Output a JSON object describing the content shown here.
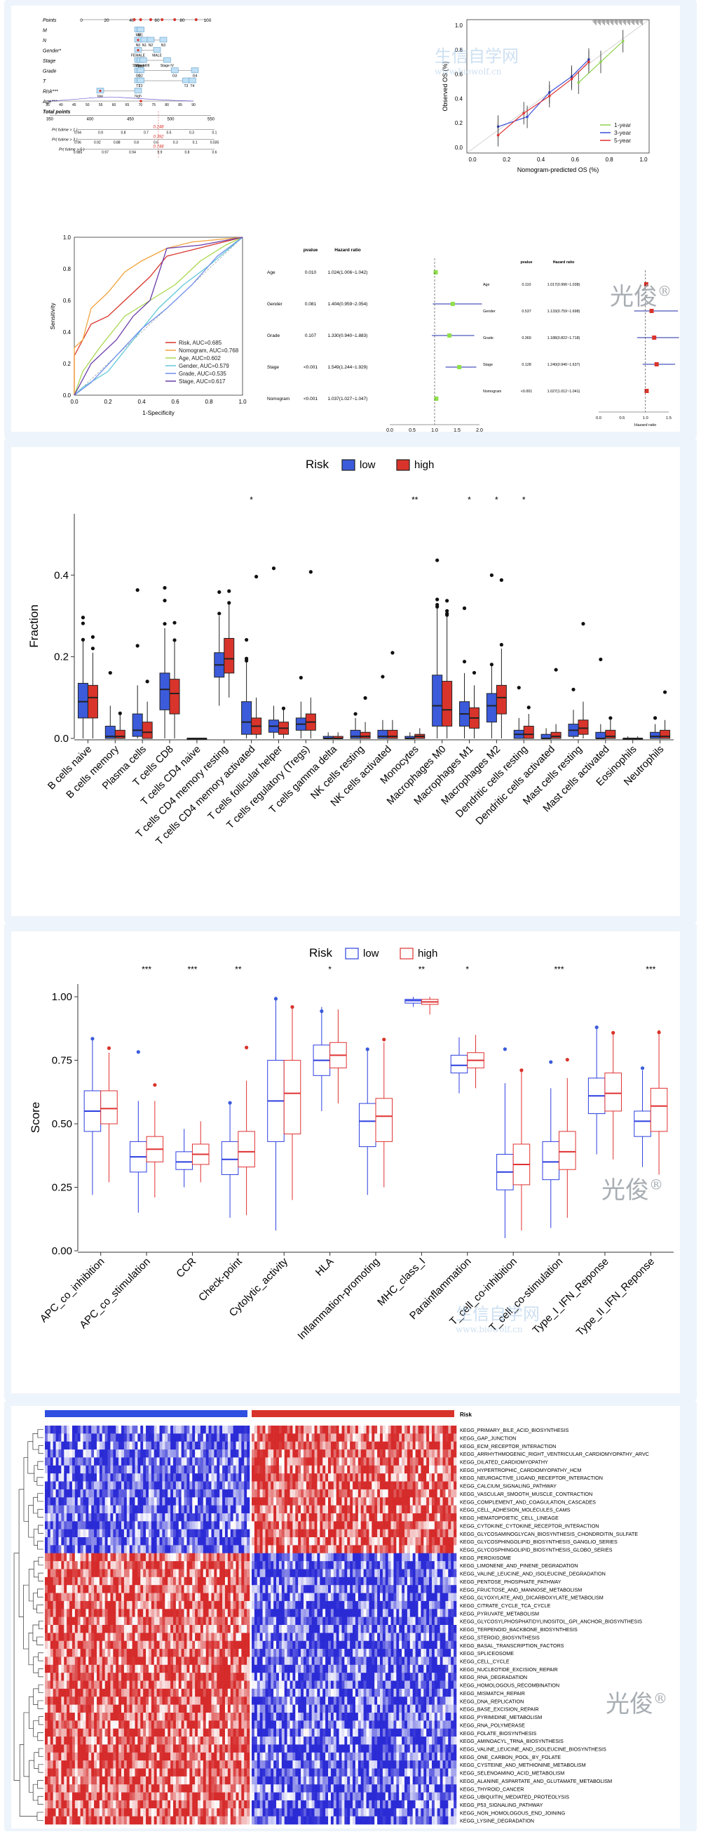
{
  "watermark": {
    "brand": "光俊",
    "reg": "®",
    "site": "生信自学网",
    "url": "www.biowolf.cn"
  },
  "colors": {
    "low": "#3b5bdb",
    "high": "#d9342b",
    "low_line": "#2c3fe0",
    "high_line": "#e03131"
  },
  "nomogram": {
    "rows": [
      "Points",
      "M",
      "N",
      "Gender*",
      "Stage",
      "Grade",
      "T",
      "Risk***",
      "Age***",
      "Total points"
    ],
    "points_ticks": [
      "0",
      "20",
      "40",
      "60",
      "80",
      "100"
    ],
    "total_ticks": [
      "350",
      "400",
      "450",
      "500",
      "550"
    ],
    "m_labels": [
      "M0",
      "M1"
    ],
    "n_labels": [
      "N0",
      "N1",
      "N2",
      "N3"
    ],
    "gender_labels": [
      "FEMALE",
      "MALE"
    ],
    "stage_labels": [
      "Stage I",
      "Stage II",
      "Stage III",
      "Stage IV"
    ],
    "grade_labels": [
      "G1",
      "G2",
      "G3",
      "G4"
    ],
    "t_labels": [
      "T1",
      "T2",
      "T3",
      "T4"
    ],
    "risk_labels": [
      "low",
      "high"
    ],
    "age_ticks": [
      "35",
      "40",
      "45",
      "50",
      "55",
      "60",
      "65",
      "70",
      "75",
      "80",
      "85",
      "90"
    ],
    "prob_rows": [
      {
        "label": "Pr( futime > 1 )",
        "ticks": [
          "0.94",
          "0.9",
          "0.8",
          "0.7",
          "0.5",
          "0.3",
          "0.1"
        ],
        "value": "0.248"
      },
      {
        "label": "Pr( futime > 3 )",
        "ticks": [
          "0.96",
          "0.92",
          "0.88",
          "0.8",
          "0.6",
          "0.3",
          "0.1",
          "0.035"
        ],
        "value": "0.392"
      },
      {
        "label": "Pr( futime > 5 )",
        "ticks": [
          "0.985",
          "0.97",
          "0.94",
          "0.9",
          "0.8",
          "0.6"
        ],
        "value": "0.748"
      }
    ]
  },
  "calibration": {
    "xlabel": "Nomogram-predicted OS (%)",
    "ylabel": "Observed OS (%)",
    "ticks": [
      "0.0",
      "0.2",
      "0.4",
      "0.6",
      "0.8",
      "1.0"
    ],
    "legend": [
      "1-year",
      "3-year",
      "5-year"
    ],
    "colors": [
      "#8fd14f",
      "#3b4fd8",
      "#e03131"
    ]
  },
  "roc": {
    "xlabel": "1-Specificity",
    "ylabel": "Sensitivity",
    "ticks": [
      "0.0",
      "0.2",
      "0.4",
      "0.6",
      "0.8",
      "1.0"
    ],
    "legend": [
      "Risk, AUC=0.685",
      "Nomogram, AUC=0.768",
      "Age, AUC=0.602",
      "Gender, AUC=0.579",
      "Grade, AUC=0.535",
      "Stage, AUC=0.617"
    ],
    "colors": [
      "#d9342b",
      "#f2a33a",
      "#a8d84e",
      "#62c8d9",
      "#6f8fe8",
      "#6a3ca8"
    ]
  },
  "forest_uni": {
    "header_p": "pvalue",
    "header_hr": "Hazard ratio",
    "rows": [
      {
        "name": "Age",
        "p": "0.010",
        "hr": "1.024(1.006~1.042)",
        "est": 1.024,
        "lo": 1.006,
        "hi": 1.042
      },
      {
        "name": "Gender",
        "p": "0.081",
        "hr": "1.404(0.959~2.054)",
        "est": 1.404,
        "lo": 0.959,
        "hi": 2.054
      },
      {
        "name": "Grade",
        "p": "0.107",
        "hr": "1.330(0.940~1.883)",
        "est": 1.33,
        "lo": 0.94,
        "hi": 1.883
      },
      {
        "name": "Stage",
        "p": "<0.001",
        "hr": "1.549(1.244~1.929)",
        "est": 1.549,
        "lo": 1.244,
        "hi": 1.929
      },
      {
        "name": "Nomogram",
        "p": "<0.001",
        "hr": "1.037(1.027~1.047)",
        "est": 1.037,
        "lo": 1.027,
        "hi": 1.047
      }
    ],
    "xlabel": "Hazard ratio",
    "ticks": [
      "0.0",
      "0.5",
      "1.0",
      "1.5",
      "2.0"
    ]
  },
  "forest_multi": {
    "header_p": "pvalue",
    "header_hr": "Hazard ratio",
    "rows": [
      {
        "name": "Age",
        "p": "0.110",
        "hr": "1.017(0.996~1.038)",
        "est": 1.017,
        "lo": 0.996,
        "hi": 1.038
      },
      {
        "name": "Gender",
        "p": "0.537",
        "hr": "1.133(0.759~1.698)",
        "est": 1.133,
        "lo": 0.759,
        "hi": 1.698
      },
      {
        "name": "Grade",
        "p": "0.369",
        "hr": "1.188(0.822~1.718)",
        "est": 1.188,
        "lo": 0.822,
        "hi": 1.718
      },
      {
        "name": "Stage",
        "p": "0.128",
        "hr": "1.240(0.940~1.637)",
        "est": 1.24,
        "lo": 0.94,
        "hi": 1.637
      },
      {
        "name": "Nomogram",
        "p": "<0.001",
        "hr": "1.027(1.012~1.041)",
        "est": 1.027,
        "lo": 1.012,
        "hi": 1.041
      }
    ],
    "xlabel": "Hazard ratio",
    "ticks": [
      "0.0",
      "0.5",
      "1.0",
      "1.5"
    ]
  },
  "chart_data": [
    {
      "type": "box",
      "legend_title": "Risk",
      "series_names": [
        "low",
        "high"
      ],
      "ylabel": "Fraction",
      "ylim": [
        0,
        0.55
      ],
      "yticks": [
        "0.0",
        "0.2",
        "0.4"
      ],
      "categories": [
        "B cells naive",
        "B cells memory",
        "Plasma cells",
        "T cells CD8",
        "T cells CD4 naive",
        "T cells CD4 memory resting",
        "T cells CD4 memory activated",
        "T cells follicular helper",
        "T cells regulatory (Tregs)",
        "T cells gamma delta",
        "NK cells resting",
        "NK cells activated",
        "Monocytes",
        "Macrophages M0",
        "Macrophages M1",
        "Macrophages M2",
        "Dendritic cells resting",
        "Dendritic cells activated",
        "Mast cells resting",
        "Mast cells activated",
        "Eosinophils",
        "Neutrophils"
      ],
      "significance": [
        "",
        "",
        "",
        "",
        "",
        "",
        "*",
        "",
        "",
        "",
        "",
        "",
        "**",
        "",
        "*",
        "*",
        "*",
        "",
        "",
        "",
        "",
        ""
      ],
      "low": [
        {
          "min": 0,
          "q1": 0.05,
          "med": 0.09,
          "q3": 0.135,
          "max": 0.24
        },
        {
          "min": 0,
          "q1": 0,
          "med": 0.005,
          "q3": 0.03,
          "max": 0.08
        },
        {
          "min": 0,
          "q1": 0.005,
          "med": 0.02,
          "q3": 0.06,
          "max": 0.13
        },
        {
          "min": 0,
          "q1": 0.07,
          "med": 0.12,
          "q3": 0.16,
          "max": 0.27
        },
        {
          "min": 0,
          "q1": 0,
          "med": 0,
          "q3": 0,
          "max": 0
        },
        {
          "min": 0.08,
          "q1": 0.15,
          "med": 0.18,
          "q3": 0.21,
          "max": 0.3
        },
        {
          "min": 0,
          "q1": 0.01,
          "med": 0.04,
          "q3": 0.09,
          "max": 0.19
        },
        {
          "min": 0,
          "q1": 0.015,
          "med": 0.03,
          "q3": 0.045,
          "max": 0.08
        },
        {
          "min": 0,
          "q1": 0.02,
          "med": 0.035,
          "q3": 0.05,
          "max": 0.09
        },
        {
          "min": 0,
          "q1": 0,
          "med": 0,
          "q3": 0.005,
          "max": 0.015
        },
        {
          "min": 0,
          "q1": 0,
          "med": 0.005,
          "q3": 0.02,
          "max": 0.05
        },
        {
          "min": 0,
          "q1": 0,
          "med": 0.005,
          "q3": 0.02,
          "max": 0.045
        },
        {
          "min": 0,
          "q1": 0,
          "med": 0,
          "q3": 0.005,
          "max": 0.015
        },
        {
          "min": 0,
          "q1": 0.03,
          "med": 0.08,
          "q3": 0.155,
          "max": 0.32
        },
        {
          "min": 0,
          "q1": 0.03,
          "med": 0.06,
          "q3": 0.09,
          "max": 0.16
        },
        {
          "min": 0,
          "q1": 0.04,
          "med": 0.08,
          "q3": 0.11,
          "max": 0.18
        },
        {
          "min": 0,
          "q1": 0,
          "med": 0.01,
          "q3": 0.02,
          "max": 0.05
        },
        {
          "min": 0,
          "q1": 0,
          "med": 0,
          "q3": 0.01,
          "max": 0.025
        },
        {
          "min": 0,
          "q1": 0.005,
          "med": 0.02,
          "q3": 0.035,
          "max": 0.07
        },
        {
          "min": 0,
          "q1": 0,
          "med": 0,
          "q3": 0.015,
          "max": 0.035
        },
        {
          "min": 0,
          "q1": 0,
          "med": 0,
          "q3": 0,
          "max": 0.005
        },
        {
          "min": 0,
          "q1": 0,
          "med": 0.005,
          "q3": 0.015,
          "max": 0.035
        }
      ],
      "high": [
        {
          "min": 0,
          "q1": 0.05,
          "med": 0.1,
          "q3": 0.13,
          "max": 0.21
        },
        {
          "min": 0,
          "q1": 0,
          "med": 0.005,
          "q3": 0.02,
          "max": 0.06
        },
        {
          "min": 0,
          "q1": 0,
          "med": 0.015,
          "q3": 0.04,
          "max": 0.09
        },
        {
          "min": 0,
          "q1": 0.06,
          "med": 0.11,
          "q3": 0.145,
          "max": 0.24
        },
        {
          "min": 0,
          "q1": 0,
          "med": 0,
          "q3": 0,
          "max": 0
        },
        {
          "min": 0.1,
          "q1": 0.16,
          "med": 0.195,
          "q3": 0.245,
          "max": 0.33
        },
        {
          "min": 0,
          "q1": 0.01,
          "med": 0.03,
          "q3": 0.05,
          "max": 0.1
        },
        {
          "min": 0,
          "q1": 0.01,
          "med": 0.025,
          "q3": 0.04,
          "max": 0.07
        },
        {
          "min": 0,
          "q1": 0.02,
          "med": 0.04,
          "q3": 0.06,
          "max": 0.1
        },
        {
          "min": 0,
          "q1": 0,
          "med": 0,
          "q3": 0.005,
          "max": 0.015
        },
        {
          "min": 0,
          "q1": 0,
          "med": 0.005,
          "q3": 0.015,
          "max": 0.04
        },
        {
          "min": 0,
          "q1": 0,
          "med": 0.005,
          "q3": 0.02,
          "max": 0.045
        },
        {
          "min": 0,
          "q1": 0,
          "med": 0.005,
          "q3": 0.01,
          "max": 0.025
        },
        {
          "min": 0,
          "q1": 0.03,
          "med": 0.07,
          "q3": 0.14,
          "max": 0.3
        },
        {
          "min": 0,
          "q1": 0.025,
          "med": 0.05,
          "q3": 0.075,
          "max": 0.13
        },
        {
          "min": 0,
          "q1": 0.06,
          "med": 0.1,
          "q3": 0.13,
          "max": 0.22
        },
        {
          "min": 0,
          "q1": 0,
          "med": 0.01,
          "q3": 0.03,
          "max": 0.06
        },
        {
          "min": 0,
          "q1": 0,
          "med": 0.005,
          "q3": 0.015,
          "max": 0.035
        },
        {
          "min": 0,
          "q1": 0.01,
          "med": 0.025,
          "q3": 0.045,
          "max": 0.09
        },
        {
          "min": 0,
          "q1": 0,
          "med": 0.005,
          "q3": 0.02,
          "max": 0.045
        },
        {
          "min": 0,
          "q1": 0,
          "med": 0,
          "q3": 0,
          "max": 0.005
        },
        {
          "min": 0,
          "q1": 0,
          "med": 0.005,
          "q3": 0.02,
          "max": 0.045
        }
      ],
      "grid": false,
      "legend_position": "top"
    },
    {
      "type": "box",
      "legend_title": "Risk",
      "series_names": [
        "low",
        "high"
      ],
      "ylabel": "Score",
      "ylim": [
        0,
        1.05
      ],
      "yticks": [
        "0.00",
        "0.25",
        "0.50",
        "0.75",
        "1.00"
      ],
      "categories": [
        "APC_co_inhibition",
        "APC_co_stimulation",
        "CCR",
        "Check-point",
        "Cytolytic_activity",
        "HLA",
        "Inflammation-promoting",
        "MHC_class_I",
        "Parainflammation",
        "T_cell_co-inhibition",
        "T_cell_co-stimulation",
        "Type_I_IFN_Reponse",
        "Type_II_IFN_Reponse"
      ],
      "significance": [
        "",
        "***",
        "***",
        "**",
        "",
        "*",
        "",
        "**",
        "*",
        "",
        "***",
        "",
        "***"
      ],
      "low": [
        {
          "min": 0.22,
          "q1": 0.47,
          "med": 0.55,
          "q3": 0.63,
          "max": 0.83
        },
        {
          "min": 0.15,
          "q1": 0.31,
          "med": 0.37,
          "q3": 0.43,
          "max": 0.59
        },
        {
          "min": 0.25,
          "q1": 0.32,
          "med": 0.35,
          "q3": 0.39,
          "max": 0.48
        },
        {
          "min": 0.13,
          "q1": 0.3,
          "med": 0.36,
          "q3": 0.43,
          "max": 0.58
        },
        {
          "min": 0.08,
          "q1": 0.43,
          "med": 0.59,
          "q3": 0.75,
          "max": 1.0
        },
        {
          "min": 0.55,
          "q1": 0.69,
          "med": 0.75,
          "q3": 0.81,
          "max": 0.96
        },
        {
          "min": 0.22,
          "q1": 0.41,
          "med": 0.51,
          "q3": 0.58,
          "max": 0.79
        },
        {
          "min": 0.96,
          "q1": 0.975,
          "med": 0.985,
          "q3": 0.99,
          "max": 1.0
        },
        {
          "min": 0.62,
          "q1": 0.7,
          "med": 0.73,
          "q3": 0.77,
          "max": 0.84
        },
        {
          "min": 0.05,
          "q1": 0.24,
          "med": 0.31,
          "q3": 0.38,
          "max": 0.66
        },
        {
          "min": 0.09,
          "q1": 0.28,
          "med": 0.35,
          "q3": 0.43,
          "max": 0.64
        },
        {
          "min": 0.38,
          "q1": 0.54,
          "med": 0.61,
          "q3": 0.68,
          "max": 0.88
        },
        {
          "min": 0.33,
          "q1": 0.45,
          "med": 0.51,
          "q3": 0.55,
          "max": 0.71
        }
      ],
      "high": [
        {
          "min": 0.27,
          "q1": 0.5,
          "med": 0.56,
          "q3": 0.63,
          "max": 0.78
        },
        {
          "min": 0.21,
          "q1": 0.35,
          "med": 0.4,
          "q3": 0.45,
          "max": 0.59
        },
        {
          "min": 0.27,
          "q1": 0.34,
          "med": 0.38,
          "q3": 0.42,
          "max": 0.51
        },
        {
          "min": 0.14,
          "q1": 0.33,
          "med": 0.39,
          "q3": 0.47,
          "max": 0.67
        },
        {
          "min": 0.2,
          "q1": 0.46,
          "med": 0.62,
          "q3": 0.75,
          "max": 0.96
        },
        {
          "min": 0.58,
          "q1": 0.72,
          "med": 0.77,
          "q3": 0.82,
          "max": 0.95
        },
        {
          "min": 0.25,
          "q1": 0.43,
          "med": 0.53,
          "q3": 0.6,
          "max": 0.82
        },
        {
          "min": 0.93,
          "q1": 0.97,
          "med": 0.98,
          "q3": 0.99,
          "max": 1.0
        },
        {
          "min": 0.64,
          "q1": 0.72,
          "med": 0.75,
          "q3": 0.78,
          "max": 0.85
        },
        {
          "min": 0.08,
          "q1": 0.26,
          "med": 0.34,
          "q3": 0.42,
          "max": 0.71
        },
        {
          "min": 0.13,
          "q1": 0.32,
          "med": 0.39,
          "q3": 0.47,
          "max": 0.68
        },
        {
          "min": 0.36,
          "q1": 0.55,
          "med": 0.62,
          "q3": 0.7,
          "max": 0.86
        },
        {
          "min": 0.3,
          "q1": 0.47,
          "med": 0.57,
          "q3": 0.64,
          "max": 0.87
        }
      ],
      "grid": false,
      "legend_position": "top"
    },
    {
      "type": "heatmap",
      "annotation_title": "Risk",
      "column_groups": [
        "low",
        "high"
      ],
      "rows": [
        "KEGG_PRIMARY_BILE_ACID_BIOSYNTHESIS",
        "KEGG_GAP_JUNCTION",
        "KEGG_ECM_RECEPTOR_INTERACTION",
        "KEGG_ARRHYTHMOGENIC_RIGHT_VENTRICULAR_CARDIOMYOPATHY_ARVC",
        "KEGG_DILATED_CARDIOMYOPATHY",
        "KEGG_HYPERTROPHIC_CARDIOMYOPATHY_HCM",
        "KEGG_NEUROACTIVE_LIGAND_RECEPTOR_INTERACTION",
        "KEGG_CALCIUM_SIGNALING_PATHWAY",
        "KEGG_VASCULAR_SMOOTH_MUSCLE_CONTRACTION",
        "KEGG_COMPLEMENT_AND_COAGULATION_CASCADES",
        "KEGG_CELL_ADHESION_MOLECULES_CAMS",
        "KEGG_HEMATOPOIETIC_CELL_LINEAGE",
        "KEGG_CYTOKINE_CYTOKINE_RECEPTOR_INTERACTION",
        "KEGG_GLYCOSAMINOGLYCAN_BIOSYNTHESIS_CHONDROITIN_SULFATE",
        "KEGG_GLYCOSPHINGOLIPID_BIOSYNTHESIS_GANGLIO_SERIES",
        "KEGG_GLYCOSPHINGOLIPID_BIOSYNTHESIS_GLOBO_SERIES",
        "KEGG_PEROXISOME",
        "KEGG_LIMONENE_AND_PINENE_DEGRADATION",
        "KEGG_VALINE_LEUCINE_AND_ISOLEUCINE_DEGRADATION",
        "KEGG_PENTOSE_PHOSPHATE_PATHWAY",
        "KEGG_FRUCTOSE_AND_MANNOSE_METABOLISM",
        "KEGG_GLYOXYLATE_AND_DICARBOXYLATE_METABOLISM",
        "KEGG_CITRATE_CYCLE_TCA_CYCLE",
        "KEGG_PYRUVATE_METABOLISM",
        "KEGG_GLYCOSYLPHOSPHATIDYLINOSITOL_GPI_ANCHOR_BIOSYNTHESIS",
        "KEGG_TERPENOID_BACKBONE_BIOSYNTHESIS",
        "KEGG_STEROID_BIOSYNTHESIS",
        "KEGG_BASAL_TRANSCRIPTION_FACTORS",
        "KEGG_SPLICEOSOME",
        "KEGG_CELL_CYCLE",
        "KEGG_NUCLEOTIDE_EXCISION_REPAIR",
        "KEGG_RNA_DEGRADATION",
        "KEGG_HOMOLOGOUS_RECOMBINATION",
        "KEGG_MISMATCH_REPAIR",
        "KEGG_DNA_REPLICATION",
        "KEGG_BASE_EXCISION_REPAIR",
        "KEGG_PYRIMIDINE_METABOLISM",
        "KEGG_RNA_POLYMERASE",
        "KEGG_FOLATE_BIOSYNTHESIS",
        "KEGG_AMINOACYL_TRNA_BIOSYNTHESIS",
        "KEGG_VALINE_LEUCINE_AND_ISOLEUCINE_BIOSYNTHESIS",
        "KEGG_ONE_CARBON_POOL_BY_FOLATE",
        "KEGG_CYSTEINE_AND_METHIONINE_METABOLISM",
        "KEGG_SELENOAMINO_ACID_METABOLISM",
        "KEGG_ALANINE_ASPARTATE_AND_GLUTAMATE_METABOLISM",
        "KEGG_THYROID_CANCER",
        "KEGG_UBIQUITIN_MEDIATED_PROTEOLYSIS",
        "KEGG_P53_SIGNALING_PATHWAY",
        "KEGG_NON_HOMOLOGOUS_END_JOINING",
        "KEGG_LYSINE_DEGRADATION"
      ],
      "colors": {
        "low": "#2b2bd6",
        "mid": "#ffffff",
        "high": "#d62b2b",
        "group_low": "#2f4fe0",
        "group_high": "#d8332b"
      },
      "up_in_high_rows": 16
    }
  ]
}
